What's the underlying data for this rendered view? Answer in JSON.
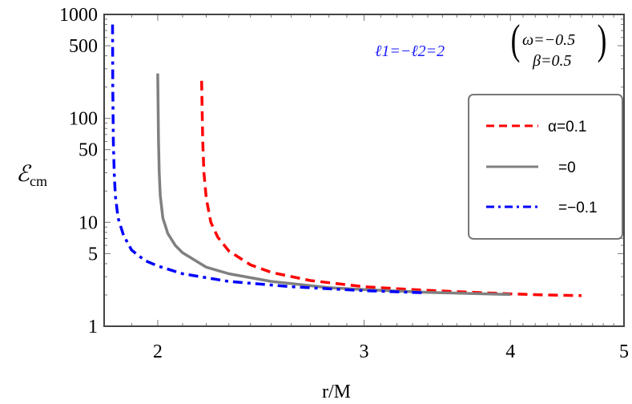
{
  "chart_data": {
    "type": "line",
    "title": "",
    "xlabel": "r/M",
    "ylabel": "ℰcm",
    "xscale": "log",
    "yscale": "log",
    "xlim": [
      1.8,
      5
    ],
    "ylim": [
      1,
      1000
    ],
    "x_ticks": [
      2,
      3,
      4,
      5
    ],
    "y_ticks": [
      1,
      5,
      10,
      50,
      100,
      500,
      1000
    ],
    "grid": false,
    "legend_position": "upper right",
    "annotations": [
      {
        "text": "ℓ1=−ℓ2=2",
        "color": "#1a1aff"
      },
      {
        "text": "(ω=−0.5, β=0.5)",
        "color": "#000000"
      }
    ],
    "series": [
      {
        "name": "α=0.1",
        "label": "α=0.1",
        "color": "#ff0000",
        "style": "dashed",
        "x": [
          2.18,
          2.185,
          2.19,
          2.2,
          2.22,
          2.25,
          2.3,
          2.4,
          2.5,
          2.7,
          3.0,
          3.3,
          3.6,
          4.0,
          4.3,
          4.6
        ],
        "y": [
          230,
          60,
          30,
          17,
          10,
          7.2,
          5.3,
          3.9,
          3.3,
          2.75,
          2.4,
          2.25,
          2.15,
          2.05,
          2.0,
          1.97
        ]
      },
      {
        "name": "α=0",
        "label": "=0",
        "color": "#808080",
        "style": "solid",
        "x": [
          2.0,
          2.003,
          2.006,
          2.01,
          2.02,
          2.04,
          2.07,
          2.1,
          2.2,
          2.3,
          2.5,
          2.8,
          3.0,
          3.4,
          4.0
        ],
        "y": [
          270,
          60,
          30,
          18,
          11,
          7.8,
          6.0,
          5.1,
          3.7,
          3.2,
          2.7,
          2.35,
          2.25,
          2.12,
          2.02
        ]
      },
      {
        "name": "α=-0.1",
        "label": "=−0.1",
        "color": "#0000ff",
        "style": "dashdot",
        "x": [
          1.83,
          1.831,
          1.833,
          1.836,
          1.84,
          1.85,
          1.87,
          1.9,
          1.95,
          2.0,
          2.1,
          2.3,
          2.6,
          3.0,
          3.37
        ],
        "y": [
          800,
          200,
          60,
          30,
          18,
          11,
          7.5,
          5.4,
          4.3,
          3.8,
          3.2,
          2.7,
          2.4,
          2.2,
          2.1
        ]
      }
    ]
  },
  "legend": {
    "items": [
      {
        "label": "α=0.1"
      },
      {
        "label": "=0"
      },
      {
        "label": "=−0.1"
      }
    ]
  },
  "annotations": {
    "ell": "ℓ1=−ℓ2=2",
    "omega": "ω=−0.5",
    "beta": "β=0.5"
  },
  "axes": {
    "xlabel": "r/M",
    "ylabel_main": "ℰ",
    "ylabel_sub": "cm"
  }
}
